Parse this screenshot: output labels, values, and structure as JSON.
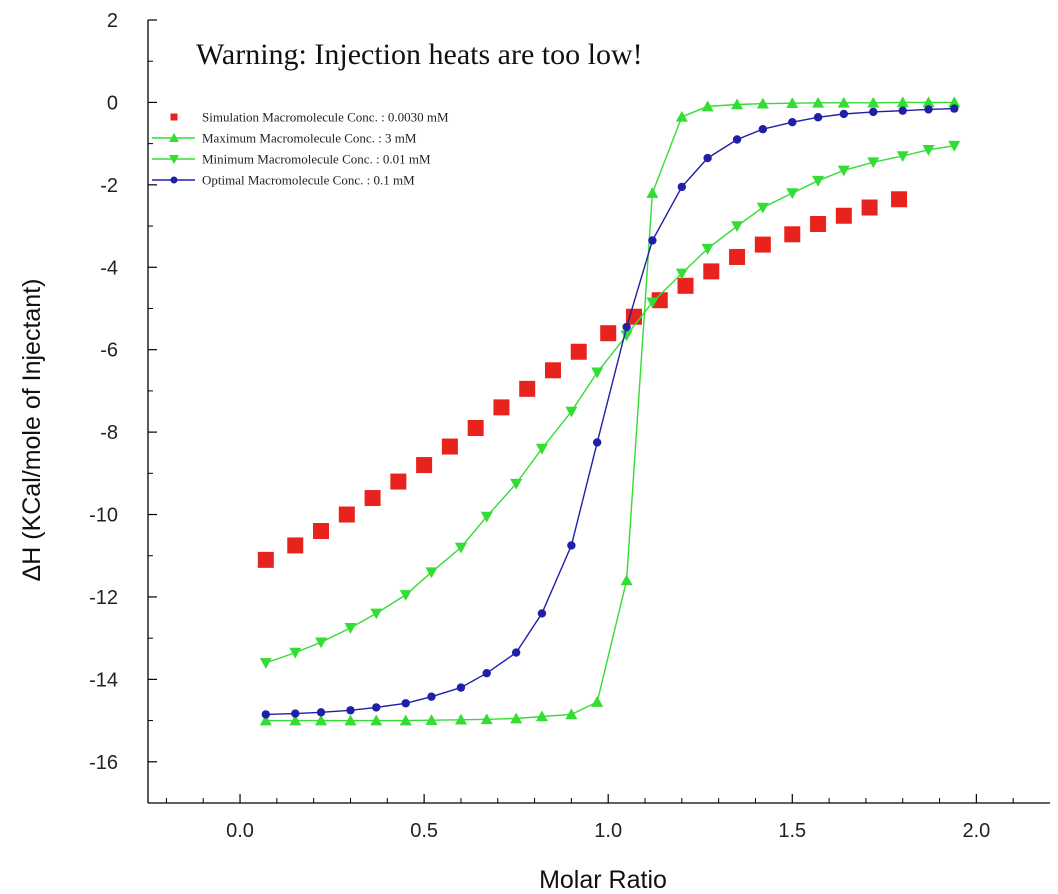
{
  "chart_data": {
    "type": "scatter",
    "annotation": "Warning: Injection heats are too low!",
    "xlabel": "Molar Ratio",
    "ylabel": "ΔH (KCal/mole of Injectant)",
    "xlim": [
      -0.25,
      2.2
    ],
    "ylim": [
      -17,
      2
    ],
    "x_ticks": [
      0.0,
      0.5,
      1.0,
      1.5,
      2.0
    ],
    "x_tick_labels": [
      "0.0",
      "0.5",
      "1.0",
      "1.5",
      "2.0"
    ],
    "y_ticks": [
      2,
      0,
      -2,
      -4,
      -6,
      -8,
      -10,
      -12,
      -14,
      -16
    ],
    "y_tick_labels": [
      "2",
      "0",
      "-2",
      "-4",
      "-6",
      "-8",
      "-10",
      "-12",
      "-14",
      "-16"
    ],
    "legend_placement": "top-left",
    "grid": false,
    "series": [
      {
        "name": "Simulation Macromolecule Conc. : 0.0030 mM",
        "marker": "square",
        "line": false,
        "color": "#e8231d",
        "x": [
          0.07,
          0.15,
          0.22,
          0.29,
          0.36,
          0.43,
          0.5,
          0.57,
          0.64,
          0.71,
          0.78,
          0.85,
          0.92,
          1.0,
          1.07,
          1.14,
          1.21,
          1.28,
          1.35,
          1.42,
          1.5,
          1.57,
          1.64,
          1.71,
          1.79
        ],
        "y": [
          -11.1,
          -10.75,
          -10.4,
          -10.0,
          -9.6,
          -9.2,
          -8.8,
          -8.35,
          -7.9,
          -7.4,
          -6.95,
          -6.5,
          -6.05,
          -5.6,
          -5.2,
          -4.8,
          -4.45,
          -4.1,
          -3.75,
          -3.45,
          -3.2,
          -2.95,
          -2.75,
          -2.55,
          -2.35
        ]
      },
      {
        "name": "Maximum Macromolecule Conc. : 3 mM",
        "marker": "triangle-up",
        "line": true,
        "color": "#33dd33",
        "x": [
          0.07,
          0.15,
          0.22,
          0.3,
          0.37,
          0.45,
          0.52,
          0.6,
          0.67,
          0.75,
          0.82,
          0.9,
          0.97,
          1.05,
          1.12,
          1.2,
          1.27,
          1.35,
          1.42,
          1.5,
          1.57,
          1.64,
          1.72,
          1.8,
          1.87,
          1.94
        ],
        "y": [
          -15.0,
          -15.0,
          -15.0,
          -15.0,
          -15.0,
          -15.0,
          -14.99,
          -14.98,
          -14.97,
          -14.95,
          -14.9,
          -14.85,
          -14.55,
          -11.6,
          -2.2,
          -0.35,
          -0.1,
          -0.05,
          -0.03,
          -0.02,
          -0.01,
          -0.01,
          -0.01,
          0.0,
          0.0,
          0.0
        ]
      },
      {
        "name": "Minimum Macromolecule Conc. : 0.01 mM",
        "marker": "triangle-down",
        "line": true,
        "color": "#33dd33",
        "x": [
          0.07,
          0.15,
          0.22,
          0.3,
          0.37,
          0.45,
          0.52,
          0.6,
          0.67,
          0.75,
          0.82,
          0.9,
          0.97,
          1.05,
          1.12,
          1.2,
          1.27,
          1.35,
          1.42,
          1.5,
          1.57,
          1.64,
          1.72,
          1.8,
          1.87,
          1.94
        ],
        "y": [
          -13.6,
          -13.35,
          -13.1,
          -12.75,
          -12.4,
          -11.95,
          -11.4,
          -10.8,
          -10.05,
          -9.25,
          -8.4,
          -7.5,
          -6.55,
          -5.65,
          -4.85,
          -4.15,
          -3.55,
          -3.0,
          -2.55,
          -2.2,
          -1.9,
          -1.65,
          -1.45,
          -1.3,
          -1.15,
          -1.05
        ]
      },
      {
        "name": "Optimal Macromolecule Conc. : 0.1 mM",
        "marker": "circle",
        "line": true,
        "color": "#1f1fa8",
        "x": [
          0.07,
          0.15,
          0.22,
          0.3,
          0.37,
          0.45,
          0.52,
          0.6,
          0.67,
          0.75,
          0.82,
          0.9,
          0.97,
          1.05,
          1.12,
          1.2,
          1.27,
          1.35,
          1.42,
          1.5,
          1.57,
          1.64,
          1.72,
          1.8,
          1.87,
          1.94
        ],
        "y": [
          -14.85,
          -14.83,
          -14.8,
          -14.75,
          -14.68,
          -14.58,
          -14.42,
          -14.2,
          -13.85,
          -13.35,
          -12.4,
          -10.75,
          -8.25,
          -5.45,
          -3.35,
          -2.05,
          -1.35,
          -0.9,
          -0.65,
          -0.48,
          -0.36,
          -0.28,
          -0.23,
          -0.2,
          -0.17,
          -0.15
        ]
      }
    ]
  }
}
